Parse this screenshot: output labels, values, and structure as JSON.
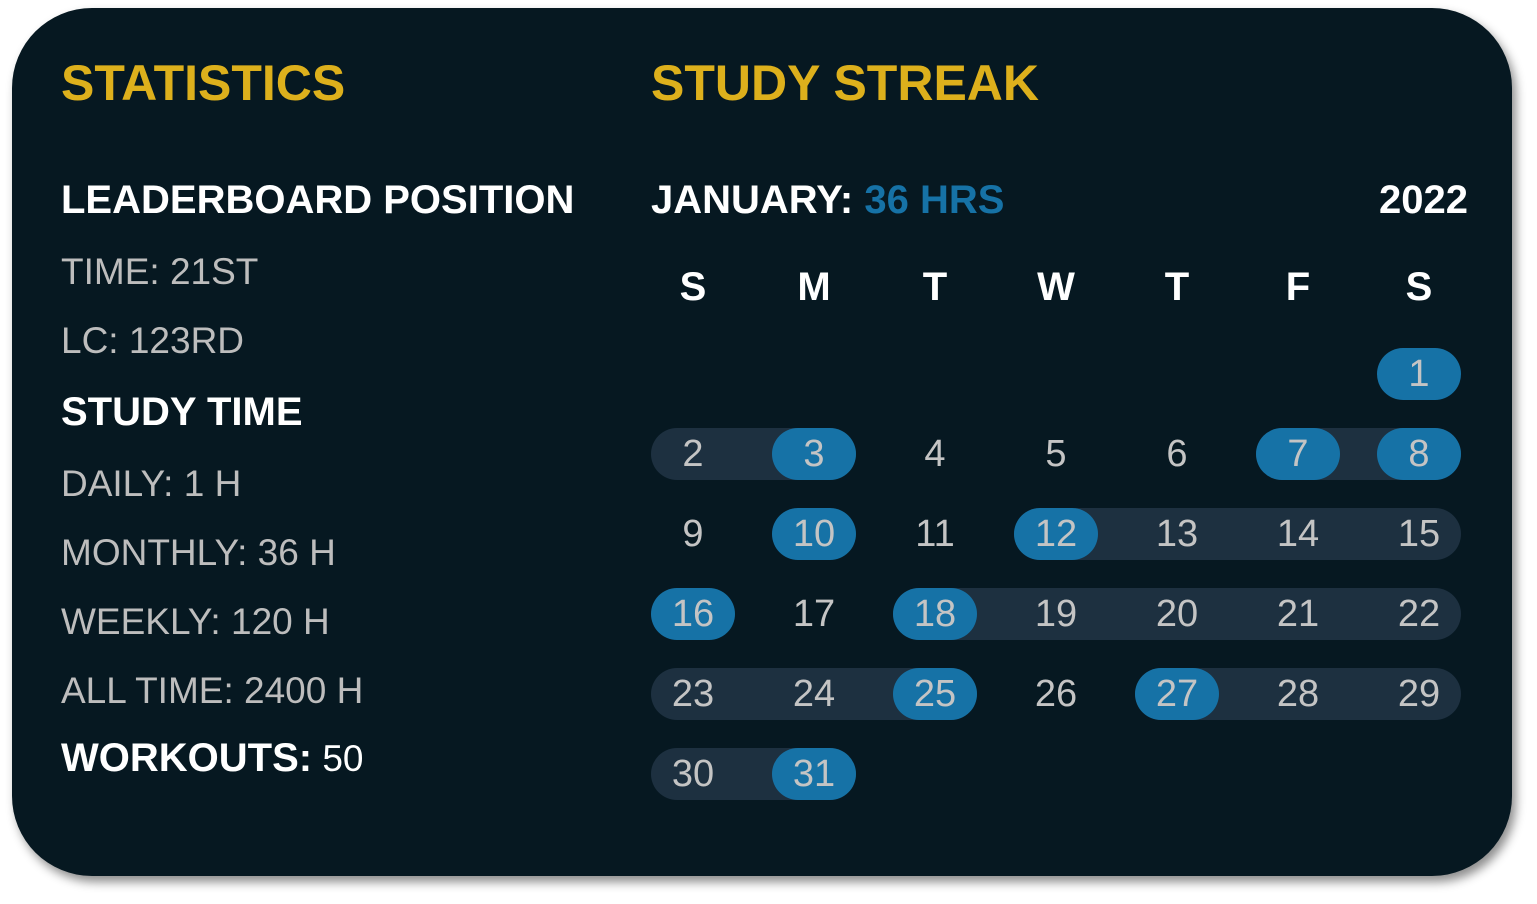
{
  "colors": {
    "background": "#061821",
    "accent_yellow": "#DDB01C",
    "accent_blue": "#1672A6",
    "streak_bar": "#1D3040",
    "text_gray": "#BDBDBD"
  },
  "statistics": {
    "title": "STATISTICS",
    "leaderboard_heading": "LEADERBOARD POSITION",
    "leaderboard_items": [
      "TIME: 21ST",
      "LC: 123RD"
    ],
    "study_time_heading": "STUDY TIME",
    "study_time_items": [
      "DAILY: 1 H",
      "MONTHLY: 36 H",
      "WEEKLY: 120 H",
      "ALL TIME: 2400 H"
    ],
    "workouts_label": "WORKOUTS:",
    "workouts_value": "50"
  },
  "streak": {
    "title": "STUDY STREAK",
    "month_label": "JANUARY:",
    "month_hours": "36 HRS",
    "year": "2022",
    "weekdays": [
      "S",
      "M",
      "T",
      "W",
      "T",
      "F",
      "S"
    ],
    "first_weekday_index": 6,
    "days_in_month": 31,
    "highlighted_days": [
      1,
      3,
      7,
      8,
      10,
      12,
      16,
      18,
      25,
      27,
      31
    ],
    "streak_ranges": [
      [
        2,
        3
      ],
      [
        7,
        8
      ],
      [
        12,
        15
      ],
      [
        18,
        22
      ],
      [
        23,
        25
      ],
      [
        27,
        29
      ],
      [
        30,
        31
      ]
    ]
  }
}
